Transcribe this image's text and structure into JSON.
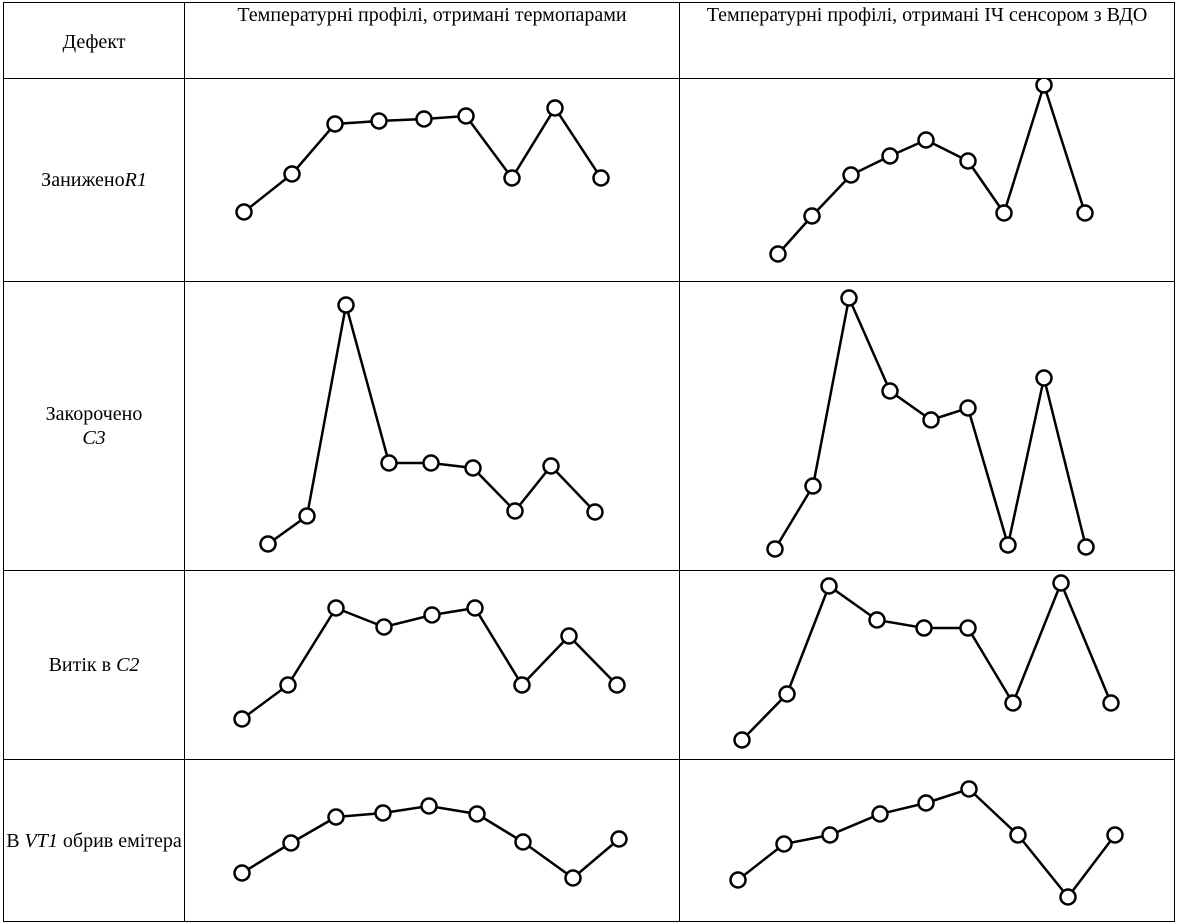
{
  "header": {
    "defect": "Дефект",
    "thermocouples": "Температурні профілі, отримані термопарами",
    "ir_sensor": "Температурні профілі, отримані ІЧ сенсором з ВДО"
  },
  "rows": [
    {
      "defect": {
        "prefix": "Занижено",
        "italic": "R1",
        "suffix": ""
      },
      "tc": [
        [
          244,
          211
        ],
        [
          292,
          173
        ],
        [
          335,
          123
        ],
        [
          379,
          120
        ],
        [
          424,
          118
        ],
        [
          466,
          115
        ],
        [
          512,
          177
        ],
        [
          555,
          107
        ],
        [
          601,
          177
        ]
      ],
      "ir": [
        [
          778,
          254
        ],
        [
          812,
          216
        ],
        [
          851,
          175
        ],
        [
          890,
          156
        ],
        [
          926,
          140
        ],
        [
          968,
          161
        ],
        [
          1004,
          213
        ],
        [
          1044,
          85
        ],
        [
          1085,
          213
        ]
      ]
    },
    {
      "defect": {
        "prefix": "Закорочено ",
        "italic": "C3",
        "suffix": ""
      },
      "tc": [
        [
          268,
          543
        ],
        [
          307,
          515
        ],
        [
          346,
          304
        ],
        [
          389,
          462
        ],
        [
          431,
          462
        ],
        [
          473,
          467
        ],
        [
          515,
          510
        ],
        [
          551,
          465
        ],
        [
          595,
          511
        ]
      ],
      "ir": [
        [
          775,
          549
        ],
        [
          813,
          486
        ],
        [
          849,
          298
        ],
        [
          890,
          391
        ],
        [
          931,
          420
        ],
        [
          968,
          408
        ],
        [
          1008,
          545
        ],
        [
          1044,
          378
        ],
        [
          1086,
          547
        ]
      ]
    },
    {
      "defect": {
        "prefix": "Витік в ",
        "italic": "C2",
        "suffix": ""
      },
      "tc": [
        [
          242,
          718
        ],
        [
          288,
          684
        ],
        [
          336,
          607
        ],
        [
          384,
          626
        ],
        [
          432,
          614
        ],
        [
          475,
          607
        ],
        [
          522,
          684
        ],
        [
          569,
          635
        ],
        [
          617,
          684
        ]
      ],
      "ir": [
        [
          742,
          740
        ],
        [
          787,
          694
        ],
        [
          829,
          586
        ],
        [
          877,
          620
        ],
        [
          924,
          628
        ],
        [
          968,
          628
        ],
        [
          1013,
          703
        ],
        [
          1061,
          583
        ],
        [
          1111,
          703
        ]
      ]
    },
    {
      "defect": {
        "prefix": "В ",
        "italic": "VT1",
        "suffix": " обрив емітера"
      },
      "tc": [
        [
          242,
          872
        ],
        [
          291,
          842
        ],
        [
          336,
          816
        ],
        [
          383,
          812
        ],
        [
          429,
          805
        ],
        [
          477,
          813
        ],
        [
          523,
          841
        ],
        [
          573,
          877
        ],
        [
          619,
          838
        ]
      ],
      "ir": [
        [
          738,
          880
        ],
        [
          784,
          844
        ],
        [
          830,
          835
        ],
        [
          880,
          814
        ],
        [
          926,
          803
        ],
        [
          969,
          789
        ],
        [
          1018,
          835
        ],
        [
          1068,
          897
        ],
        [
          1115,
          835
        ]
      ]
    }
  ]
}
